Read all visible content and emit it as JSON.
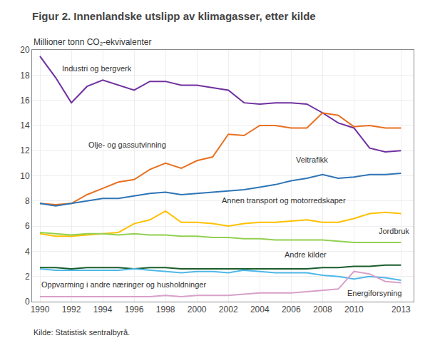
{
  "chart_data": {
    "type": "line",
    "title": "Figur 2. Innenlandske utslipp av klimagasser, etter kilde",
    "ylabel": "Millioner tonn CO₂-ekvivalenter",
    "source": "Kilde: Statistisk sentralbyrå.",
    "x": [
      1990,
      1991,
      1992,
      1993,
      1994,
      1995,
      1996,
      1997,
      1998,
      1999,
      2000,
      2001,
      2002,
      2003,
      2004,
      2005,
      2006,
      2007,
      2008,
      2009,
      2010,
      2011,
      2012,
      2013
    ],
    "series": [
      {
        "name": "Industri og bergverk",
        "color": "#7030a0",
        "values": [
          19.5,
          17.8,
          15.8,
          17.1,
          17.6,
          17.2,
          16.8,
          17.5,
          17.5,
          17.2,
          17.2,
          17.0,
          16.8,
          15.8,
          15.7,
          15.8,
          15.8,
          15.7,
          15.0,
          14.2,
          13.8,
          12.2,
          11.9,
          12.0
        ]
      },
      {
        "name": "Olje- og gassutvinning",
        "color": "#e87020",
        "values": [
          7.8,
          7.7,
          7.8,
          8.5,
          9.0,
          9.5,
          9.7,
          10.5,
          11.0,
          10.6,
          11.2,
          11.5,
          13.3,
          13.2,
          14.0,
          14.0,
          13.8,
          13.8,
          15.0,
          14.8,
          13.9,
          14.0,
          13.8,
          13.8
        ]
      },
      {
        "name": "Veitrafikk",
        "color": "#2e75b6",
        "values": [
          7.8,
          7.6,
          7.8,
          8.0,
          8.2,
          8.2,
          8.4,
          8.6,
          8.7,
          8.5,
          8.6,
          8.7,
          8.8,
          8.9,
          9.1,
          9.3,
          9.6,
          9.8,
          10.1,
          9.8,
          9.9,
          10.1,
          10.1,
          10.2
        ]
      },
      {
        "name": "Annen transport og motorredskaper",
        "color": "#ffc000",
        "values": [
          5.4,
          5.2,
          5.2,
          5.3,
          5.4,
          5.5,
          6.2,
          6.5,
          7.2,
          6.3,
          6.3,
          6.2,
          6.0,
          6.2,
          6.3,
          6.3,
          6.4,
          6.5,
          6.3,
          6.3,
          6.6,
          7.0,
          7.1,
          7.0
        ]
      },
      {
        "name": "Jordbruk",
        "color": "#92d050",
        "values": [
          5.5,
          5.4,
          5.3,
          5.4,
          5.4,
          5.3,
          5.4,
          5.3,
          5.3,
          5.2,
          5.2,
          5.1,
          5.1,
          5.0,
          5.0,
          4.9,
          4.9,
          4.9,
          4.9,
          4.8,
          4.7,
          4.7,
          4.7,
          4.7
        ]
      },
      {
        "name": "Andre kilder",
        "color": "#1a5c2a",
        "values": [
          2.7,
          2.7,
          2.6,
          2.7,
          2.7,
          2.7,
          2.6,
          2.7,
          2.7,
          2.6,
          2.6,
          2.6,
          2.6,
          2.6,
          2.6,
          2.6,
          2.6,
          2.6,
          2.7,
          2.7,
          2.8,
          2.8,
          2.9,
          2.9
        ]
      },
      {
        "name": "Oppvarming i andre næringer og husholdninger",
        "color": "#4db8e8",
        "values": [
          2.6,
          2.5,
          2.5,
          2.5,
          2.5,
          2.5,
          2.6,
          2.5,
          2.4,
          2.3,
          2.4,
          2.4,
          2.3,
          2.5,
          2.4,
          2.3,
          2.3,
          2.3,
          2.1,
          2.0,
          1.8,
          2.0,
          1.9,
          1.7
        ]
      },
      {
        "name": "Energiforsyning",
        "color": "#d8a0c8",
        "values": [
          0.4,
          0.4,
          0.4,
          0.4,
          0.4,
          0.4,
          0.4,
          0.4,
          0.5,
          0.4,
          0.5,
          0.5,
          0.5,
          0.6,
          0.7,
          0.7,
          0.7,
          0.8,
          0.9,
          1.0,
          2.4,
          2.2,
          1.6,
          1.5
        ]
      }
    ],
    "annotations": [
      {
        "text": "Industri og bergverk",
        "x": 1991.3,
        "y": 18.1
      },
      {
        "text": "Olje- og gassutvinning",
        "x": 1993.0,
        "y": 12.0
      },
      {
        "text": "Veitrafikk",
        "x": 2006.2,
        "y": 10.8
      },
      {
        "text": "Annen transport og motorredskaper",
        "x": 2001.5,
        "y": 7.6
      },
      {
        "text": "Jordbruk",
        "x": 2011.5,
        "y": 5.15
      },
      {
        "text": "Andre kilder",
        "x": 2005.5,
        "y": 3.3
      },
      {
        "text": "Oppvarming i andre næringer og husholdninger",
        "x": 1990.0,
        "y": 0.9
      },
      {
        "text": "Energiforsyning",
        "x": 2009.5,
        "y": 0.25
      }
    ],
    "xlim": [
      1989.5,
      2013.8
    ],
    "ylim": [
      0,
      20
    ],
    "xticks": [
      1990,
      1992,
      1994,
      1996,
      1998,
      2000,
      2002,
      2004,
      2006,
      2008,
      2010,
      2013
    ],
    "yticks": [
      0,
      2,
      4,
      6,
      8,
      10,
      12,
      14,
      16,
      18,
      20
    ],
    "grid": true
  }
}
